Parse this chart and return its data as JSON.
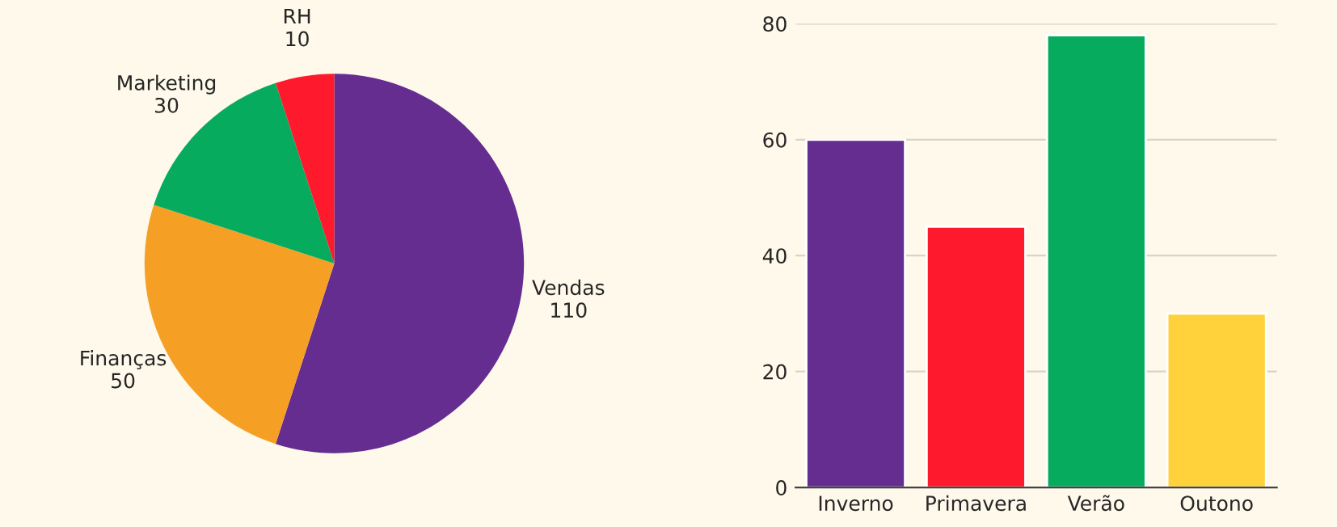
{
  "chart_data": [
    {
      "type": "pie",
      "categories": [
        "Vendas",
        "Finanças",
        "Marketing",
        "RH"
      ],
      "values": [
        110,
        50,
        30,
        10
      ],
      "colors": [
        "#652d90",
        "#f5a025",
        "#07ab5e",
        "#fe1a2c"
      ],
      "data_labels": true
    },
    {
      "type": "bar",
      "categories": [
        "Inverno",
        "Primavera",
        "Verão",
        "Outono"
      ],
      "values": [
        60,
        45,
        78,
        30
      ],
      "colors": [
        "#652d90",
        "#fe1a2c",
        "#07ab5e",
        "#ffd13a"
      ],
      "ylim": [
        0,
        80
      ],
      "yticks": [
        0,
        20,
        40,
        60,
        80
      ],
      "grid": "y"
    }
  ]
}
